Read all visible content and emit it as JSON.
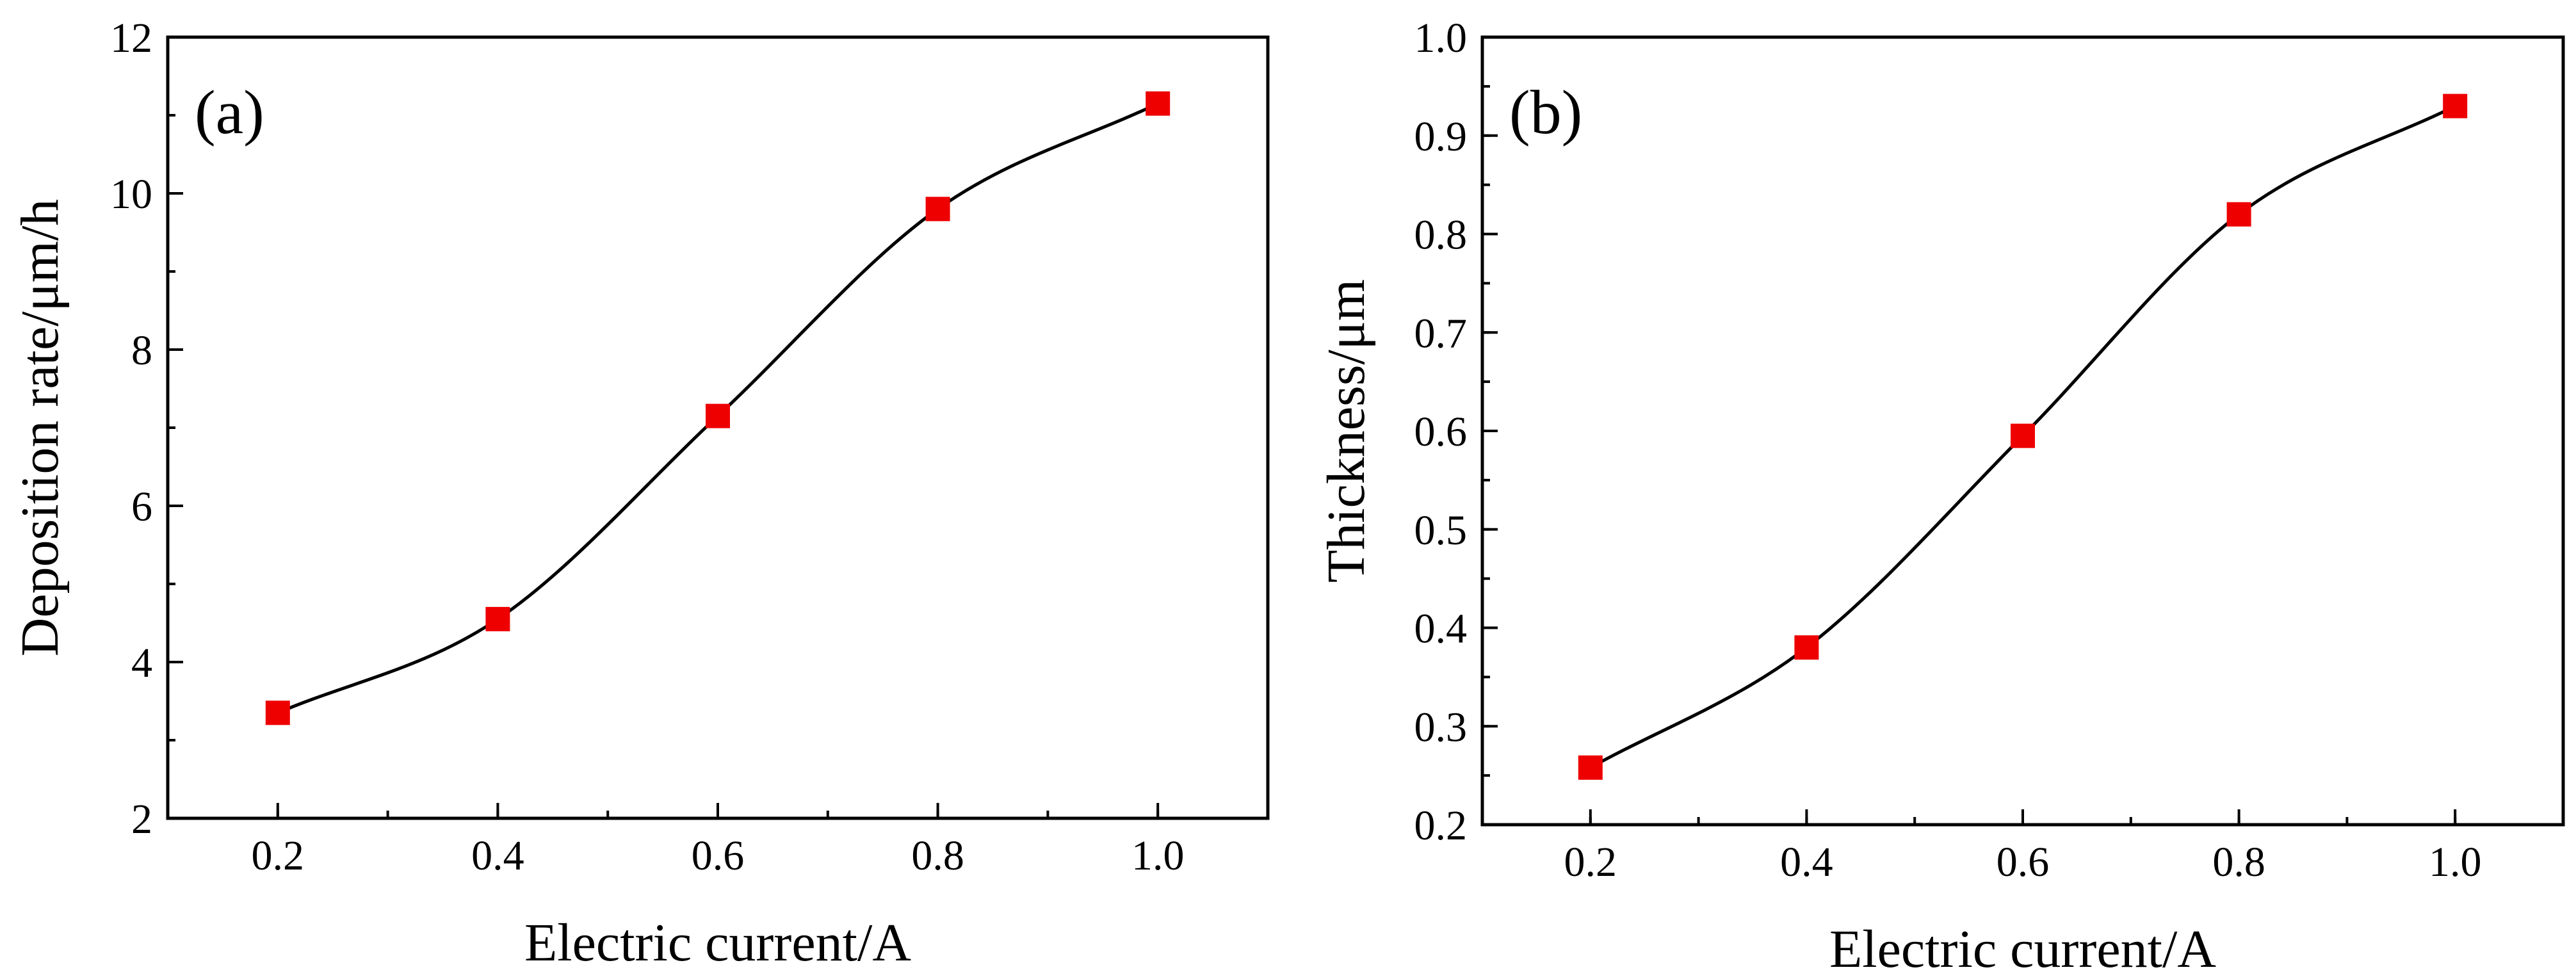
{
  "chart_data": [
    {
      "type": "line",
      "panel_label": "(a)",
      "title": "",
      "xlabel": "Electric current/A",
      "ylabel": "Deposition rate/μm/h",
      "xlim": [
        0.1,
        1.1
      ],
      "ylim": [
        2,
        12
      ],
      "xticks": [
        0.2,
        0.4,
        0.6,
        0.8,
        1.0
      ],
      "xtick_labels": [
        "0.2",
        "0.4",
        "0.6",
        "0.8",
        "1.0"
      ],
      "yticks": [
        2,
        4,
        6,
        8,
        10,
        12
      ],
      "ytick_labels": [
        "2",
        "4",
        "6",
        "8",
        "10",
        "12"
      ],
      "x_minor_step": 0.1,
      "y_minor_step": 1,
      "grid": false,
      "series": [
        {
          "name": "Deposition rate",
          "marker": "square",
          "marker_color": "#ee0000",
          "line_color": "#000000",
          "smooth": true,
          "x": [
            0.2,
            0.4,
            0.6,
            0.8,
            1.0
          ],
          "values": [
            3.35,
            4.55,
            7.15,
            9.8,
            11.15
          ]
        }
      ]
    },
    {
      "type": "line",
      "panel_label": "(b)",
      "title": "",
      "xlabel": "Electric current/A",
      "ylabel": "Thickness/μm",
      "xlim": [
        0.1,
        1.1
      ],
      "ylim": [
        0.2,
        1.0
      ],
      "xticks": [
        0.2,
        0.4,
        0.6,
        0.8,
        1.0
      ],
      "xtick_labels": [
        "0.2",
        "0.4",
        "0.6",
        "0.8",
        "1.0"
      ],
      "yticks": [
        0.2,
        0.3,
        0.4,
        0.5,
        0.6,
        0.7,
        0.8,
        0.9,
        1.0
      ],
      "ytick_labels": [
        "0.2",
        "0.3",
        "0.4",
        "0.5",
        "0.6",
        "0.7",
        "0.8",
        "0.9",
        "1.0"
      ],
      "x_minor_step": 0.1,
      "y_minor_step": 0.05,
      "grid": false,
      "series": [
        {
          "name": "Thickness",
          "marker": "square",
          "marker_color": "#ee0000",
          "line_color": "#000000",
          "smooth": true,
          "x": [
            0.2,
            0.4,
            0.6,
            0.8,
            1.0
          ],
          "values": [
            0.258,
            0.38,
            0.595,
            0.82,
            0.93
          ]
        }
      ]
    }
  ]
}
